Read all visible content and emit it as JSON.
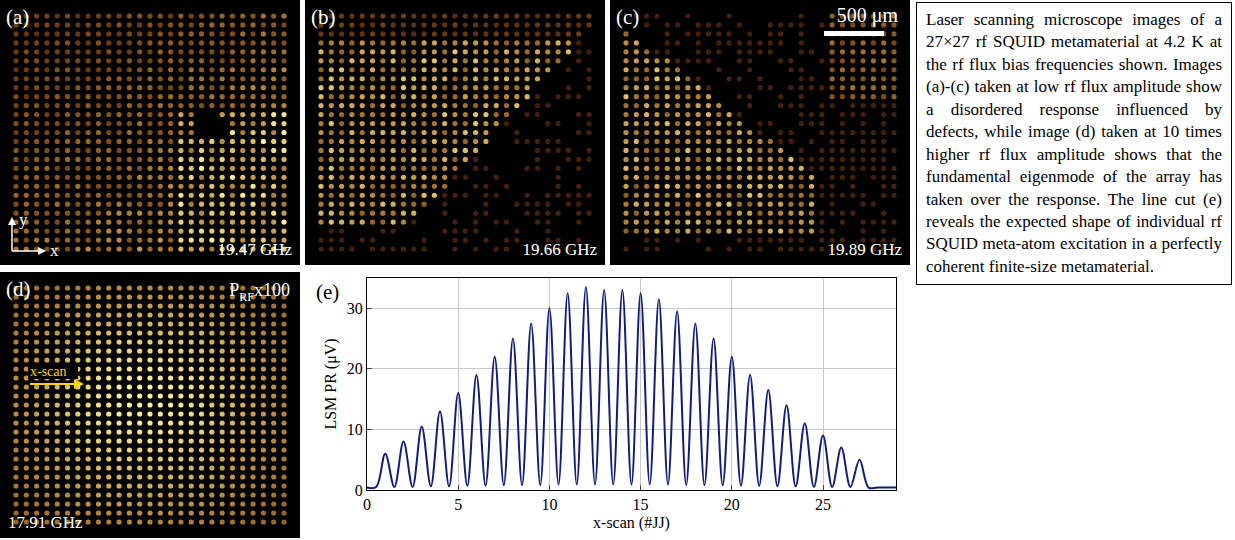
{
  "panels": [
    {
      "label": "(a)",
      "caption": "19.47 GHz",
      "axis_labels": {
        "x": "x",
        "y": "y"
      }
    },
    {
      "label": "(b)",
      "caption": "19.66 GHz"
    },
    {
      "label": "(c)",
      "caption": "19.89 GHz",
      "scale_bar": "500 μm"
    },
    {
      "label": "(d)",
      "caption": "17.91 GHz",
      "power": {
        "base": "P",
        "subscript": "RF",
        "suffix": "x100"
      },
      "scan_label": "x-scan"
    }
  ],
  "caption": "Laser scanning microscope images of a 27×27 rf SQUID metamaterial at 4.2 K at the rf flux bias frequencies shown. Images (a)-(c) taken at low rf flux amplitude show a disordered response influenced by defects, while image (d) taken at 10 times higher rf flux amplitude shows that the fundamental eigenmode of the array has taken over the response. The line cut (e) reveals the expected shape of individual rf SQUID meta-atom excitation in a perfectly coherent finite-size metamaterial.",
  "chart_data": {
    "type": "line",
    "label": "(e)",
    "xlabel": "x-scan (#JJ)",
    "ylabel": "LSM PR (μV)",
    "x": [
      0,
      0.5,
      1,
      1.5,
      2,
      2.5,
      3,
      3.5,
      4,
      4.5,
      5,
      5.5,
      6,
      6.5,
      7,
      7.5,
      8,
      8.5,
      9,
      9.5,
      10,
      10.5,
      11,
      11.5,
      12,
      12.5,
      13,
      13.5,
      14,
      14.5,
      15,
      15.5,
      16,
      16.5,
      17,
      17.5,
      18,
      18.5,
      19,
      19.5,
      20,
      20.5,
      21,
      21.5,
      22,
      22.5,
      23,
      23.5,
      24,
      24.5,
      25,
      25.5,
      26,
      26.5,
      27,
      27.5,
      28,
      29
    ],
    "values": [
      0.4,
      0.5,
      6,
      0.5,
      8,
      0.5,
      10.5,
      0.6,
      13,
      0.6,
      16,
      0.7,
      19,
      0.7,
      22,
      0.8,
      25,
      0.8,
      27.5,
      0.8,
      30,
      0.9,
      32.5,
      0.9,
      33.5,
      0.9,
      33,
      0.9,
      33,
      0.9,
      32.5,
      0.9,
      31.5,
      0.9,
      29.5,
      0.8,
      27.5,
      0.8,
      25,
      0.8,
      22,
      0.7,
      19,
      0.7,
      16.5,
      0.6,
      14,
      0.6,
      11,
      0.5,
      9,
      0.5,
      7,
      0.5,
      5,
      0.4,
      0.4,
      0.4
    ],
    "color": "#101e78",
    "xlim": [
      0,
      29
    ],
    "ylim": [
      0,
      35
    ],
    "xticks": [
      0,
      5,
      10,
      15,
      20,
      25
    ],
    "yticks": [
      0,
      10,
      20,
      30
    ],
    "grid": true
  }
}
